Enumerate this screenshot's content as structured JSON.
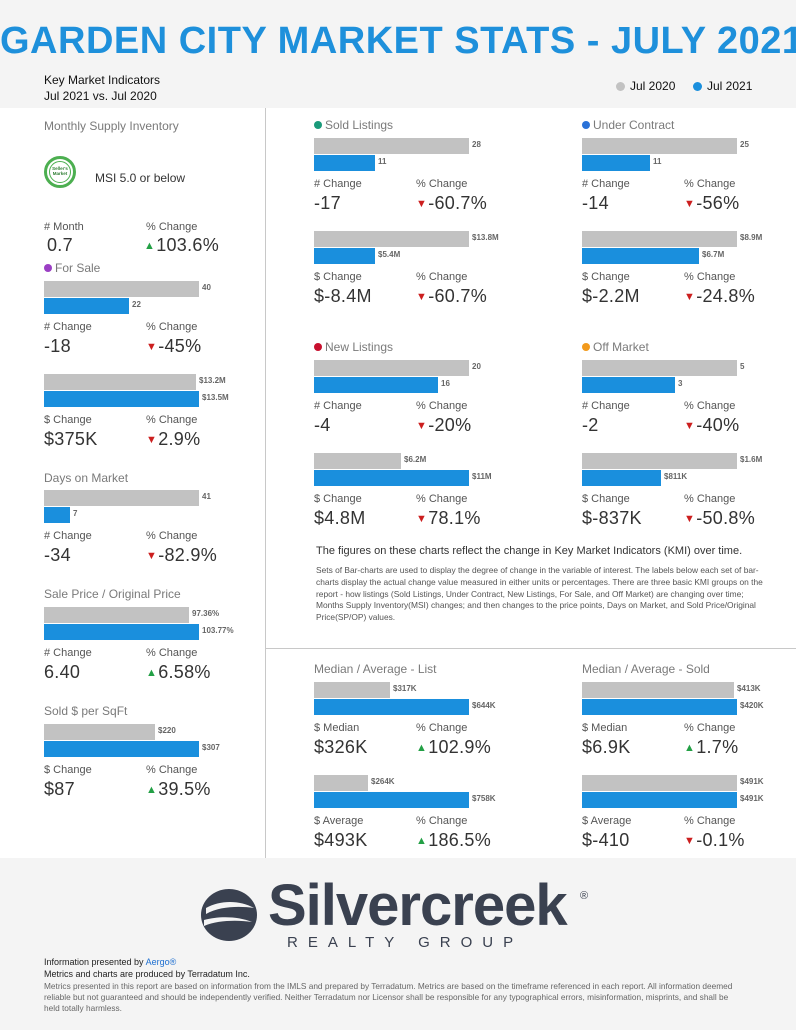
{
  "header": {
    "title": "GARDEN CITY MARKET STATS - JULY 2021",
    "subtitle_line1": "Key Market Indicators",
    "subtitle_line2": "Jul 2021 vs. Jul 2020",
    "legend": [
      {
        "label": "Jul 2020",
        "color": "#c2c2c2"
      },
      {
        "label": "Jul 2021",
        "color": "#1a8fdd"
      }
    ]
  },
  "colors": {
    "prior": "#c2c2c2",
    "current": "#1a8fdd",
    "up": "#23a045",
    "down": "#cc1f1f",
    "title": "#1e90db"
  },
  "sections": {
    "supply": {
      "title": "Monthly Supply Inventory",
      "badge": "Seller's Market",
      "msi_note": "MSI 5.0 or below",
      "label_a": "# Month",
      "value_a": "0.7",
      "label_b": "% Change",
      "value_b": "103.6%",
      "dir_b": "up"
    },
    "for_sale": {
      "title": "For Sale",
      "dot": "#9b3fc4",
      "bar1": {
        "prior": "40",
        "current": "22"
      },
      "stats1": {
        "label_a": "# Change",
        "value_a": "-18",
        "label_b": "% Change",
        "value_b": "-45%",
        "dir_b": "down"
      },
      "bar2": {
        "prior": "$13.2M",
        "current": "$13.5M"
      },
      "stats2": {
        "label_a": "$ Change",
        "value_a": "$375K",
        "label_b": "% Change",
        "value_b": "2.9%",
        "dir_b": "down"
      }
    },
    "dom": {
      "title": "Days on Market",
      "bar1": {
        "prior": "41",
        "current": "7"
      },
      "stats1": {
        "label_a": "# Change",
        "value_a": "-34",
        "label_b": "% Change",
        "value_b": "-82.9%",
        "dir_b": "down"
      }
    },
    "sp_op": {
      "title": "Sale Price / Original Price",
      "bar1": {
        "prior": "97.36%",
        "current": "103.77%"
      },
      "stats1": {
        "label_a": "# Change",
        "value_a": "6.40",
        "label_b": "% Change",
        "value_b": "6.58%",
        "dir_b": "up"
      }
    },
    "psf": {
      "title": "Sold $ per SqFt",
      "bar1": {
        "prior": "$220",
        "current": "$307"
      },
      "stats1": {
        "label_a": "$ Change",
        "value_a": "$87",
        "label_b": "% Change",
        "value_b": "39.5%",
        "dir_b": "up"
      }
    },
    "sold": {
      "title": "Sold Listings",
      "dot": "#1a9a7a",
      "bar1": {
        "prior": "28",
        "current": "11"
      },
      "stats1": {
        "label_a": "# Change",
        "value_a": "-17",
        "label_b": "% Change",
        "value_b": "-60.7%",
        "dir_b": "down"
      },
      "bar2": {
        "prior": "$13.8M",
        "current": "$5.4M"
      },
      "stats2": {
        "label_a": "$ Change",
        "value_a": "$-8.4M",
        "label_b": "% Change",
        "value_b": "-60.7%",
        "dir_b": "down"
      }
    },
    "contract": {
      "title": "Under Contract",
      "dot": "#2a72d8",
      "bar1": {
        "prior": "25",
        "current": "11"
      },
      "stats1": {
        "label_a": "# Change",
        "value_a": "-14",
        "label_b": "% Change",
        "value_b": "-56%",
        "dir_b": "down"
      },
      "bar2": {
        "prior": "$8.9M",
        "current": "$6.7M"
      },
      "stats2": {
        "label_a": "$ Change",
        "value_a": "$-2.2M",
        "label_b": "% Change",
        "value_b": "-24.8%",
        "dir_b": "down"
      }
    },
    "new": {
      "title": "New Listings",
      "dot": "#c8102e",
      "bar1": {
        "prior": "20",
        "current": "16"
      },
      "stats1": {
        "label_a": "# Change",
        "value_a": "-4",
        "label_b": "% Change",
        "value_b": "-20%",
        "dir_b": "down"
      },
      "bar2": {
        "prior": "$6.2M",
        "current": "$11M"
      },
      "stats2": {
        "label_a": "$ Change",
        "value_a": "$4.8M",
        "label_b": "% Change",
        "value_b": "78.1%",
        "dir_b": "down"
      }
    },
    "off": {
      "title": "Off Market",
      "dot": "#f29a1c",
      "bar1": {
        "prior": "5",
        "current": "3"
      },
      "stats1": {
        "label_a": "# Change",
        "value_a": "-2",
        "label_b": "% Change",
        "value_b": "-40%",
        "dir_b": "down"
      },
      "bar2": {
        "prior": "$1.6M",
        "current": "$811K"
      },
      "stats2": {
        "label_a": "$ Change",
        "value_a": "$-837K",
        "label_b": "% Change",
        "value_b": "-50.8%",
        "dir_b": "down"
      }
    },
    "list": {
      "title": "Median / Average - List",
      "bar1": {
        "prior": "$317K",
        "current": "$644K"
      },
      "stats1": {
        "label_a": "$ Median",
        "value_a": "$326K",
        "label_b": "% Change",
        "value_b": "102.9%",
        "dir_b": "up"
      },
      "bar2": {
        "prior": "$264K",
        "current": "$758K"
      },
      "stats2": {
        "label_a": "$ Average",
        "value_a": "$493K",
        "label_b": "% Change",
        "value_b": "186.5%",
        "dir_b": "up"
      }
    },
    "soldpx": {
      "title": "Median / Average - Sold",
      "bar1": {
        "prior": "$413K",
        "current": "$420K"
      },
      "stats1": {
        "label_a": "$ Median",
        "value_a": "$6.9K",
        "label_b": "% Change",
        "value_b": "1.7%",
        "dir_b": "up"
      },
      "bar2": {
        "prior": "$491K",
        "current": "$491K"
      },
      "stats2": {
        "label_a": "$ Average",
        "value_a": "$-410",
        "label_b": "% Change",
        "value_b": "-0.1%",
        "dir_b": "down"
      }
    }
  },
  "chart_data": [
    {
      "type": "bar",
      "title": "For Sale",
      "categories": [
        "Jul 2020",
        "Jul 2021"
      ],
      "values": [
        40,
        22
      ]
    },
    {
      "type": "bar",
      "title": "For Sale",
      "categories": [
        "Jul 2020",
        "Jul 2021"
      ],
      "values": [
        13.2,
        13.5
      ],
      "unit": "$M"
    },
    {
      "type": "bar",
      "title": "Days on Market",
      "categories": [
        "Jul 2020",
        "Jul 2021"
      ],
      "values": [
        41,
        7
      ]
    },
    {
      "type": "bar",
      "title": "Sale Price / Original Price",
      "categories": [
        "Jul 2020",
        "Jul 2021"
      ],
      "values": [
        97.36,
        103.77
      ],
      "unit": "%"
    },
    {
      "type": "bar",
      "title": "Sold $ per SqFt",
      "categories": [
        "Jul 2020",
        "Jul 2021"
      ],
      "values": [
        220,
        307
      ],
      "unit": "$"
    },
    {
      "type": "bar",
      "title": "Sold Listings",
      "categories": [
        "Jul 2020",
        "Jul 2021"
      ],
      "values": [
        28,
        11
      ]
    },
    {
      "type": "bar",
      "title": "Sold Listings",
      "categories": [
        "Jul 2020",
        "Jul 2021"
      ],
      "values": [
        13.8,
        5.4
      ],
      "unit": "$M"
    },
    {
      "type": "bar",
      "title": "Under Contract",
      "categories": [
        "Jul 2020",
        "Jul 2021"
      ],
      "values": [
        25,
        11
      ]
    },
    {
      "type": "bar",
      "title": "Under Contract",
      "categories": [
        "Jul 2020",
        "Jul 2021"
      ],
      "values": [
        8.9,
        6.7
      ],
      "unit": "$M"
    },
    {
      "type": "bar",
      "title": "New Listings",
      "categories": [
        "Jul 2020",
        "Jul 2021"
      ],
      "values": [
        20,
        16
      ]
    },
    {
      "type": "bar",
      "title": "New Listings",
      "categories": [
        "Jul 2020",
        "Jul 2021"
      ],
      "values": [
        6.2,
        11
      ],
      "unit": "$M"
    },
    {
      "type": "bar",
      "title": "Off Market",
      "categories": [
        "Jul 2020",
        "Jul 2021"
      ],
      "values": [
        5,
        3
      ]
    },
    {
      "type": "bar",
      "title": "Off Market",
      "categories": [
        "Jul 2020",
        "Jul 2021"
      ],
      "values": [
        1600,
        811
      ],
      "unit": "$K"
    },
    {
      "type": "bar",
      "title": "Median / Average - List",
      "categories": [
        "Jul 2020",
        "Jul 2021"
      ],
      "values": [
        317,
        644
      ],
      "unit": "$K"
    },
    {
      "type": "bar",
      "title": "Median / Average - List",
      "categories": [
        "Jul 2020",
        "Jul 2021"
      ],
      "values": [
        264,
        758
      ],
      "unit": "$K"
    },
    {
      "type": "bar",
      "title": "Median / Average - Sold",
      "categories": [
        "Jul 2020",
        "Jul 2021"
      ],
      "values": [
        413,
        420
      ],
      "unit": "$K"
    },
    {
      "type": "bar",
      "title": "Median / Average - Sold",
      "categories": [
        "Jul 2020",
        "Jul 2021"
      ],
      "values": [
        491,
        491
      ],
      "unit": "$K"
    }
  ],
  "description": {
    "heading": "The figures on these charts reflect the change in Key Market Indicators (KMI) over time.",
    "body": "Sets of Bar-charts are used to display the degree of change in the variable of interest. The labels below each set of bar-charts display the actual change value measured in either units or percentages. There are three basic KMI groups on the report - how listings (Sold Listings, Under Contract, New Listings, For Sale, and Off Market) are changing over time; Months Supply Inventory(MSI) changes; and then changes to the price points, Days on Market, and Sold Price/Original Price(SP/OP) values."
  },
  "footer": {
    "logo_name": "Silvercreek",
    "logo_reg": "®",
    "logo_sub": "REALTY GROUP",
    "presented_prefix": "Information presented by ",
    "presented_link": "Aergo®",
    "produced": "Metrics and charts are produced by Terradatum Inc.",
    "disclaimer": "Metrics presented in this report are based on information from the IMLS and prepared by Terradatum. Metrics are based on the timeframe referenced in each report. All information deemed reliable but not guaranteed and should be independently verified. Neither Terradatum nor Licensor shall be responsible for any typographical errors, misinformation, misprints, and shall be held totally harmless."
  }
}
